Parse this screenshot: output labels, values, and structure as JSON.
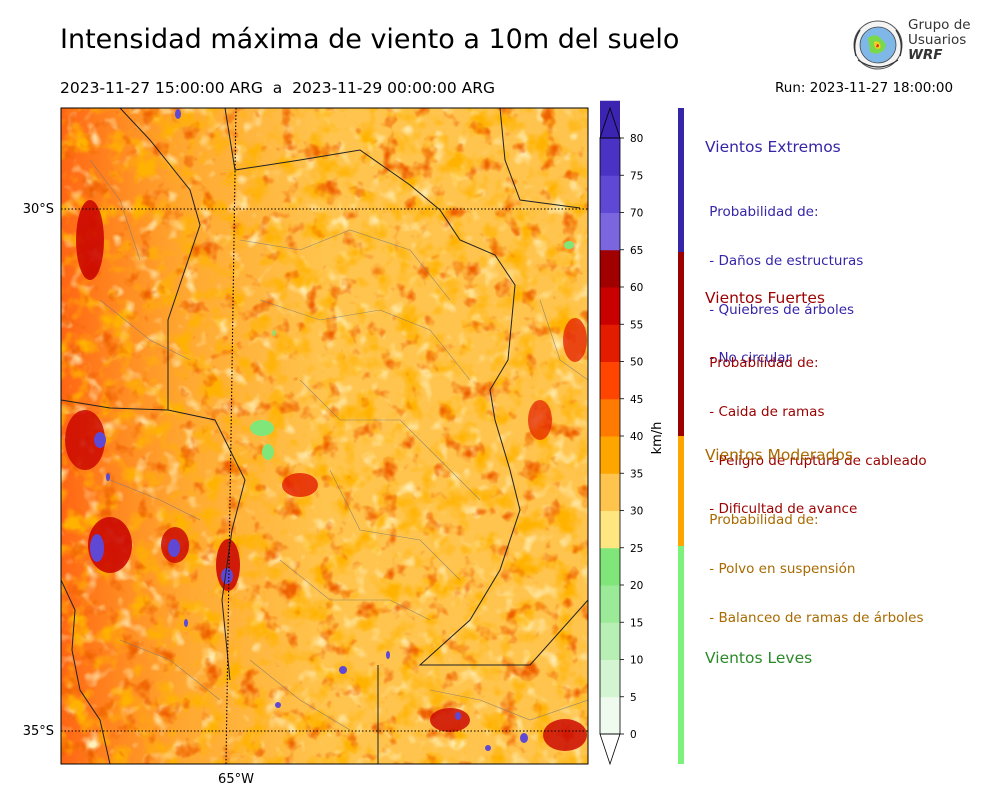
{
  "title": "Intensidad máxima de viento a 10m del suelo",
  "period": "2023-11-27 15:00:00 ARG  a  2023-11-29 00:00:00 ARG",
  "run": "Run: 2023-11-27 18:00:00",
  "logo": {
    "line1": "Grupo de",
    "line2": "Usuarios",
    "line3": "WRF"
  },
  "map": {
    "lat_labels": [
      "30°S",
      "35°S"
    ],
    "lon_labels": [
      "65°W"
    ]
  },
  "colorbar": {
    "unit": "km/h",
    "ticks": [
      "0",
      "5",
      "10",
      "15",
      "20",
      "25",
      "30",
      "35",
      "40",
      "45",
      "50",
      "55",
      "60",
      "65",
      "70",
      "75",
      "80"
    ],
    "colors": [
      "#eefbee",
      "#d3f5d2",
      "#b8efb5",
      "#9bea98",
      "#80e67a",
      "#ffe680",
      "#ffc44d",
      "#ffa500",
      "#ff7a00",
      "#ff4500",
      "#e31c00",
      "#c80000",
      "#a00000",
      "#7b66e0",
      "#5f48d4",
      "#4a33c4",
      "#3a24b0"
    ]
  },
  "categories": [
    {
      "title": "Vientos Extremos",
      "color": "#3525a8",
      "bar_color": "#3525a8",
      "lines": [
        " Probabilidad de:",
        " - Daños de estructuras",
        " - Quiebres de árboles",
        " - No circular"
      ]
    },
    {
      "title": "Vientos Fuertes",
      "color": "#9a0000",
      "bar_color": "#9a0000",
      "lines": [
        " Probabilidad de:",
        " - Caida de ramas",
        " - Peligro de ruptura de cableado",
        " - Dificultad de avance"
      ]
    },
    {
      "title": "Vientos Moderados",
      "color": "#a86a00",
      "bar_color": "#ffa500",
      "lines": [
        " Probabilidad de:",
        " - Polvo en suspensión",
        " - Balanceo de ramas de árboles"
      ]
    },
    {
      "title": "Vientos Leves",
      "color": "#2a8a2a",
      "bar_color": "#7cf27c",
      "lines": []
    }
  ]
}
